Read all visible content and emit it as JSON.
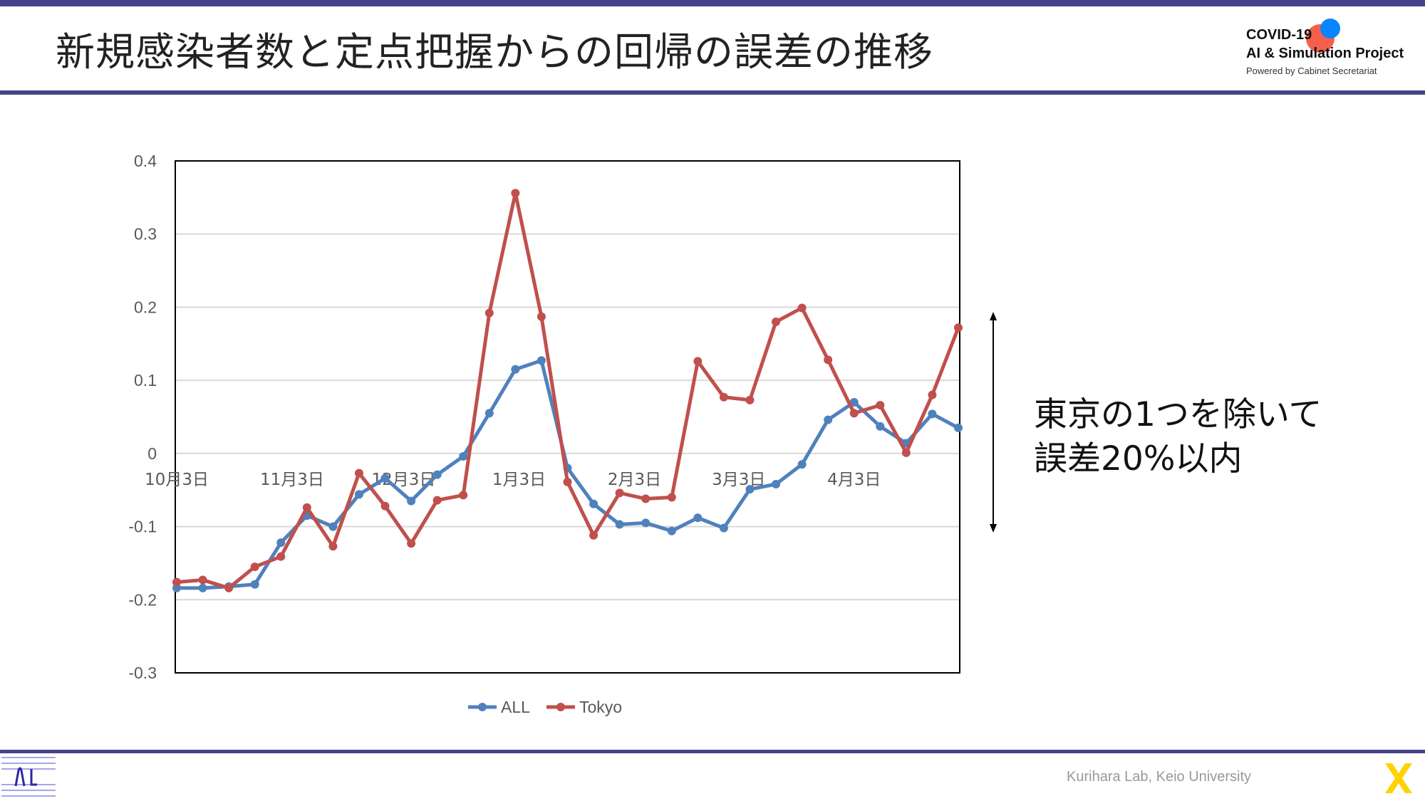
{
  "header": {
    "title": "新規感染者数と定点把握からの回帰の誤差の推移"
  },
  "logo": {
    "line1": "COVID-19",
    "line2": "AI & Simulation Project",
    "line3": "Powered by Cabinet Secretariat"
  },
  "annotation": {
    "line1": "東京の1つを除いて",
    "line2": "誤差20%以内"
  },
  "footer": {
    "credit": "Kurihara Lab, Keio University",
    "left_logo": "AI"
  },
  "colors": {
    "accent": "#45438a",
    "all": "#4f81bd",
    "tokyo": "#c0504d",
    "logo_red": "#f4604b",
    "logo_blue": "#0a84ff",
    "logo_yellow": "#ffd200"
  },
  "chart_data": {
    "type": "line",
    "title": "",
    "xlabel": "",
    "ylabel": "",
    "ylim": [
      -0.3,
      0.4
    ],
    "yticks": [
      -0.3,
      -0.2,
      -0.1,
      0,
      0.1,
      0.2,
      0.3,
      0.4
    ],
    "ytick_labels": [
      "-0.3",
      "-0.2",
      "-0.1",
      "0",
      "0.1",
      "0.2",
      "0.3",
      "0.4"
    ],
    "x_tick_labels": [
      {
        "label": "10月3日",
        "pos": 0
      },
      {
        "label": "11月3日",
        "pos": 4.43
      },
      {
        "label": "12月3日",
        "pos": 8.71
      },
      {
        "label": "1月3日",
        "pos": 13.14
      },
      {
        "label": "2月3日",
        "pos": 17.57
      },
      {
        "label": "3月3日",
        "pos": 21.57
      },
      {
        "label": "4月3日",
        "pos": 26
      }
    ],
    "grid": true,
    "legend_position": "bottom",
    "series": [
      {
        "name": "ALL",
        "color": "#4f81bd",
        "values": [
          -0.184,
          -0.184,
          -0.182,
          -0.179,
          -0.122,
          -0.085,
          -0.1,
          -0.056,
          -0.034,
          -0.065,
          -0.029,
          -0.004,
          0.055,
          0.115,
          0.127,
          -0.02,
          -0.069,
          -0.097,
          -0.095,
          -0.106,
          -0.088,
          -0.102,
          -0.049,
          -0.042,
          -0.015,
          0.046,
          0.07,
          0.037,
          0.014,
          0.054,
          0.035
        ]
      },
      {
        "name": "Tokyo",
        "color": "#c0504d",
        "values": [
          -0.176,
          -0.173,
          -0.184,
          -0.155,
          -0.141,
          -0.074,
          -0.127,
          -0.027,
          -0.072,
          -0.123,
          -0.064,
          -0.057,
          0.192,
          0.356,
          0.187,
          -0.039,
          -0.112,
          -0.054,
          -0.062,
          -0.06,
          0.126,
          0.077,
          0.073,
          0.18,
          0.199,
          0.128,
          0.055,
          0.066,
          0.001,
          0.08,
          0.172
        ]
      }
    ]
  }
}
